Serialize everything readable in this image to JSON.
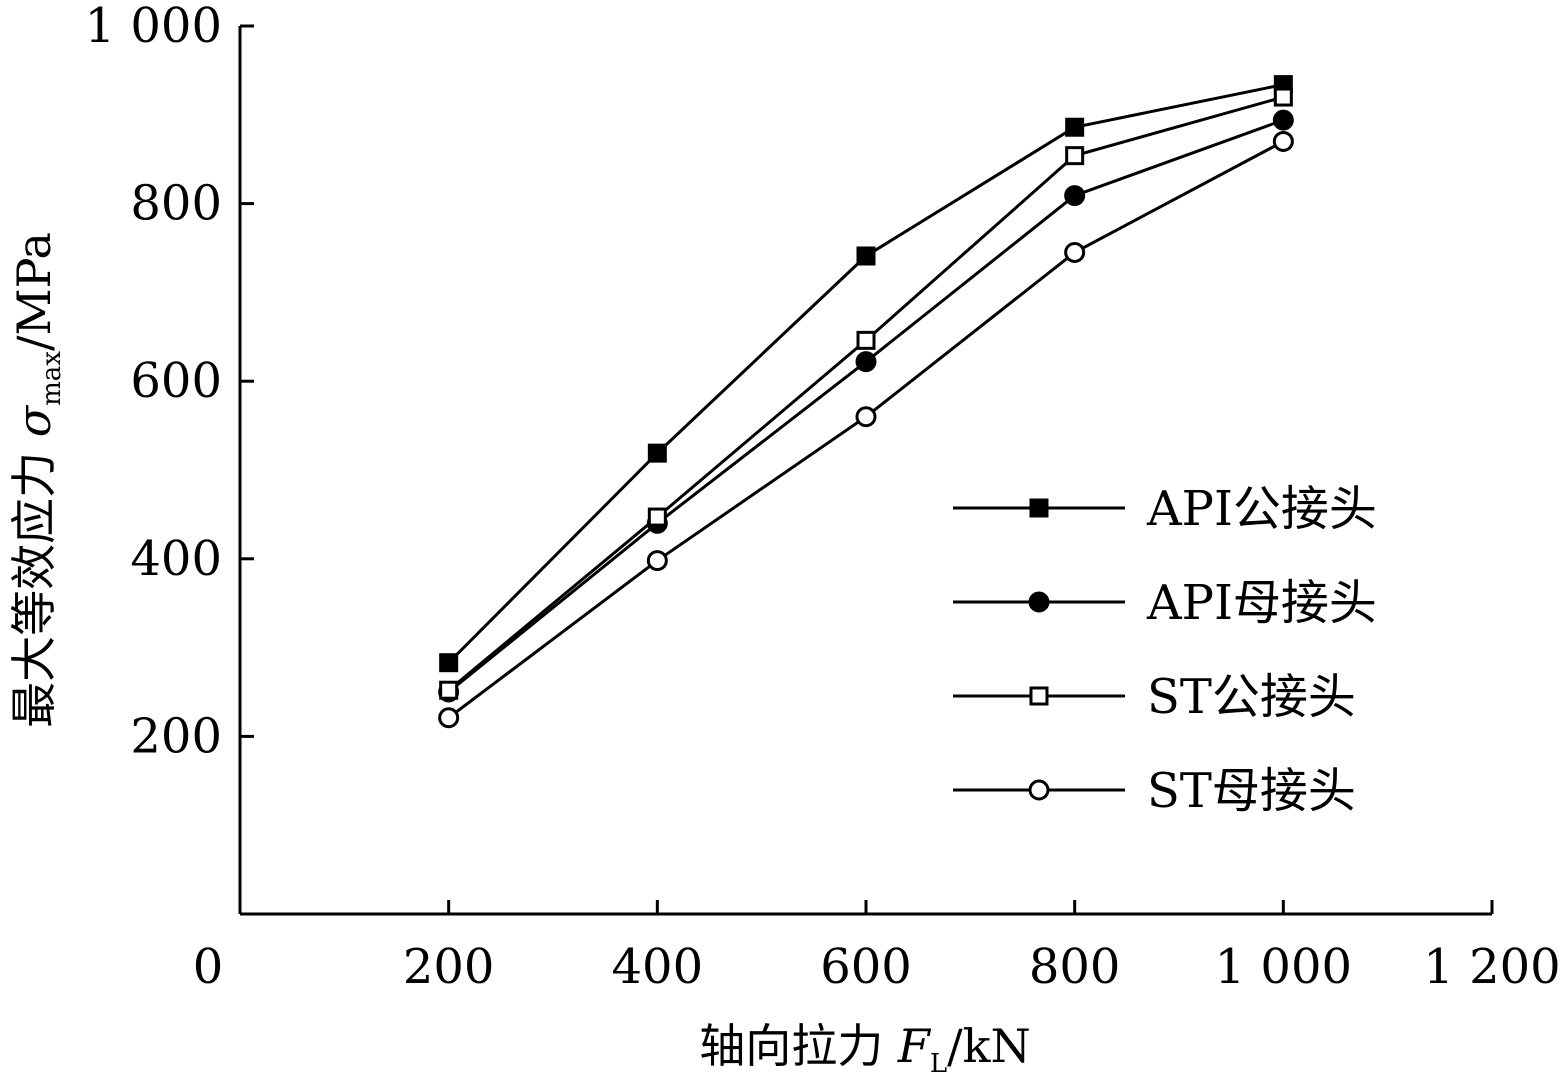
{
  "chart_data": {
    "type": "line",
    "xlabel": {
      "prefix": "轴向拉力 ",
      "symbol": "F",
      "subscript": "L",
      "unit": "/kN"
    },
    "ylabel": {
      "prefix": "最大等效应力 ",
      "symbol": "σ",
      "subscript": "max",
      "unit": "/MPa"
    },
    "xlim": [
      0,
      1200
    ],
    "ylim": [
      0,
      1000
    ],
    "x_ticks": [
      {
        "value": 0,
        "label": "0"
      },
      {
        "value": 200,
        "label": "200"
      },
      {
        "value": 400,
        "label": "400"
      },
      {
        "value": 600,
        "label": "600"
      },
      {
        "value": 800,
        "label": "800"
      },
      {
        "value": 1000,
        "label": "1 000"
      },
      {
        "value": 1200,
        "label": "1 200"
      }
    ],
    "y_ticks": [
      {
        "value": 200,
        "label": "200"
      },
      {
        "value": 400,
        "label": "400"
      },
      {
        "value": 600,
        "label": "600"
      },
      {
        "value": 800,
        "label": "800"
      },
      {
        "value": 1000,
        "label": "1 000"
      }
    ],
    "x": [
      200,
      400,
      600,
      800,
      1000
    ],
    "series": [
      {
        "name": "API公接头",
        "marker": "square-filled",
        "values": [
          283,
          519,
          741,
          886,
          934
        ]
      },
      {
        "name": "API母接头",
        "marker": "circle-filled",
        "values": [
          250,
          440,
          622,
          809,
          894
        ]
      },
      {
        "name": "ST公接头",
        "marker": "square-open",
        "values": [
          252,
          447,
          646,
          854,
          920
        ]
      },
      {
        "name": "ST母接头",
        "marker": "circle-open",
        "values": [
          221,
          398,
          560,
          745,
          870
        ]
      }
    ],
    "legend_position": "lower-right",
    "grid": false,
    "colors": {
      "line": "#000000",
      "background": "#ffffff"
    }
  }
}
